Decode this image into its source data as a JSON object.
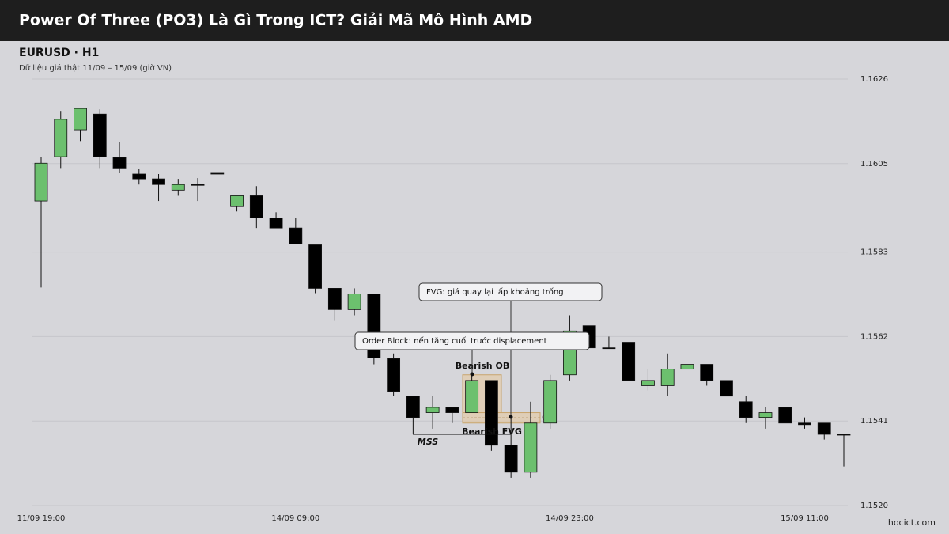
{
  "header": {
    "title": "Power Of Three (PO3) Là Gì Trong ICT? Giải Mã Mô Hình AMD"
  },
  "footer": {
    "site": "hocict.com"
  },
  "chart_data": {
    "type": "candlestick",
    "title": "EURUSD · H1",
    "subtitle": "Dữ liệu giá thật 11/09 – 15/09 (giờ VN)",
    "categories": [
      "11/09 19:00",
      null,
      null,
      null,
      null,
      null,
      null,
      null,
      null,
      null,
      null,
      null,
      null,
      "14/09 09:00",
      null,
      null,
      null,
      null,
      null,
      null,
      null,
      null,
      null,
      null,
      null,
      null,
      null,
      "14/09 23:00",
      null,
      null,
      null,
      null,
      null,
      null,
      null,
      null,
      null,
      null,
      null,
      "15/09 11:00",
      null,
      null
    ],
    "open": [
      1.15957,
      1.16067,
      1.16134,
      1.16173,
      1.16065,
      1.16024,
      1.16012,
      1.15984,
      1.15998,
      1.16026,
      1.15943,
      1.1597,
      1.15915,
      1.1589,
      1.15848,
      1.1574,
      1.15687,
      1.15726,
      1.15565,
      1.15472,
      1.15431,
      1.15444,
      1.15431,
      1.15511,
      1.1535,
      1.15283,
      1.15405,
      1.15525,
      1.15647,
      1.15592,
      1.15606,
      1.15498,
      1.15498,
      1.15539,
      1.15551,
      1.15511,
      1.15458,
      1.15419,
      1.15444,
      1.15405,
      1.15405,
      1.15377
    ],
    "high": [
      1.16067,
      1.16181,
      1.16187,
      1.16185,
      1.16104,
      1.16037,
      1.16024,
      1.16012,
      1.16014,
      1.16026,
      1.1597,
      1.15994,
      1.15929,
      1.15915,
      1.15848,
      1.1574,
      1.1574,
      1.15726,
      1.15578,
      1.15472,
      1.15472,
      1.15444,
      1.15525,
      1.15511,
      1.15419,
      1.15458,
      1.15525,
      1.15673,
      1.15647,
      1.1562,
      1.15606,
      1.15539,
      1.15578,
      1.15551,
      1.15551,
      1.15511,
      1.15472,
      1.15444,
      1.15444,
      1.15419,
      1.15405,
      1.15377
    ],
    "low": [
      1.15742,
      1.16039,
      1.16106,
      1.16039,
      1.16026,
      1.15998,
      1.15957,
      1.1597,
      1.15957,
      1.16024,
      1.15931,
      1.1589,
      1.1589,
      1.1585,
      1.15728,
      1.15659,
      1.15673,
      1.15551,
      1.15472,
      1.15377,
      1.15391,
      1.15405,
      1.15431,
      1.15336,
      1.15269,
      1.15269,
      1.15391,
      1.15511,
      1.15592,
      1.15592,
      1.15511,
      1.15486,
      1.15472,
      1.15539,
      1.15498,
      1.15472,
      1.15405,
      1.15391,
      1.15405,
      1.15391,
      1.15364,
      1.15297
    ],
    "close": [
      1.16051,
      1.1616,
      1.16187,
      1.16067,
      1.16039,
      1.16012,
      1.15998,
      1.15998,
      1.15996,
      1.16024,
      1.1597,
      1.15915,
      1.1589,
      1.1585,
      1.1574,
      1.15687,
      1.15726,
      1.15567,
      1.15484,
      1.15419,
      1.15444,
      1.15431,
      1.15511,
      1.1535,
      1.15283,
      1.15405,
      1.15511,
      1.15634,
      1.15592,
      1.1559,
      1.15511,
      1.15511,
      1.15539,
      1.15551,
      1.15511,
      1.15472,
      1.15419,
      1.15431,
      1.15405,
      1.15401,
      1.15377,
      1.15375
    ],
    "up_color": "#6cc06e",
    "down_color": "#000000",
    "ylim": [
      1.152,
      1.1626
    ],
    "yticks": [
      {
        "value": 1.152,
        "label": "1.1520"
      },
      1.1541,
      1.1562,
      1.1583,
      1.1605,
      1.1626
    ],
    "grid": true,
    "zones": [
      {
        "label": "Bearish OB",
        "range": [
          1.15431,
          1.15525
        ],
        "color": "#e8c99a"
      },
      {
        "label": "Bearish FVG",
        "range": [
          1.15405,
          1.15431
        ],
        "color": "#e8c99a",
        "midline": "0.5"
      }
    ],
    "levels": [
      {
        "label": "MSS",
        "value": 1.15377
      }
    ],
    "callouts": [
      "FVG: giá quay lại lấp khoảng trống",
      "Order Block: nến tăng cuối trước displacement"
    ]
  }
}
